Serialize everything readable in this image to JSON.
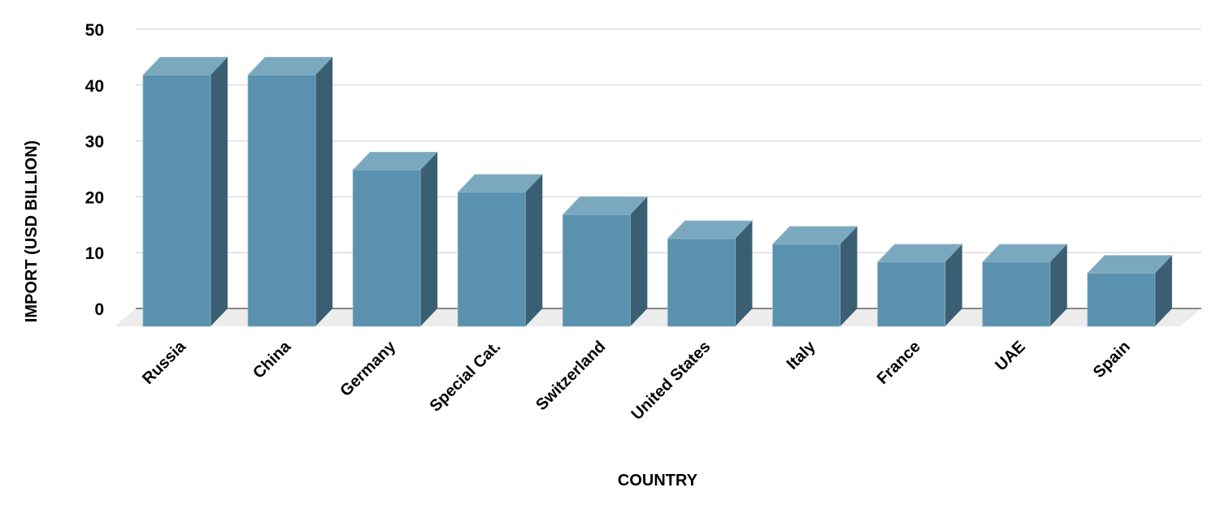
{
  "chart_data": {
    "type": "bar",
    "style": "3d-column",
    "categories": [
      "Russia",
      "China",
      "Germany",
      "Special Cat.",
      "Switzerland",
      "United States",
      "Italy",
      "France",
      "UAE",
      "Spain"
    ],
    "values": [
      45,
      45,
      28,
      24,
      20,
      15.7,
      14.7,
      11.5,
      11.5,
      9.5
    ],
    "xlabel": "COUNTRY",
    "ylabel": "IMPORT (USD BILLION)",
    "ylim": [
      0,
      50
    ],
    "yticks": [
      0,
      10,
      20,
      30,
      40,
      50
    ],
    "grid": true,
    "legend": "none",
    "colors": {
      "front": "#5a91ae",
      "top": "#7aa8bf",
      "side": "#3a5f72",
      "floor": "#ececec",
      "grid": "#dddddd",
      "axis": "#888888"
    }
  }
}
